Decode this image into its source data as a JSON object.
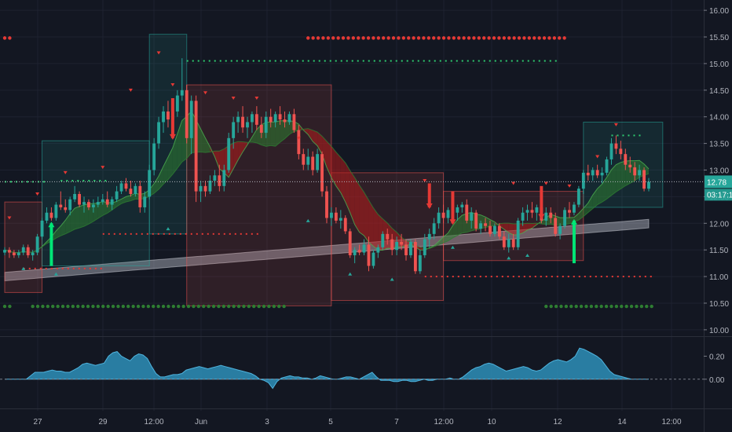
{
  "chart_data": {
    "type": "candlestick",
    "price_panel": {
      "y_ticks": [
        "16.00",
        "15.50",
        "15.00",
        "14.50",
        "14.00",
        "13.50",
        "13.00",
        "12.50",
        "12.00",
        "11.50",
        "11.00",
        "10.50",
        "10.00"
      ],
      "ylim": [
        9.88,
        16.12
      ],
      "last_price": "12.78",
      "countdown": "03:17:10",
      "bull_color": "#26a69a",
      "bear_color": "#ef5350",
      "candles": [
        [
          11.45,
          11.55,
          11.4,
          11.5
        ],
        [
          11.5,
          11.55,
          11.35,
          11.45
        ],
        [
          11.45,
          11.5,
          11.35,
          11.4
        ],
        [
          11.4,
          11.5,
          11.35,
          11.45
        ],
        [
          11.45,
          11.6,
          11.4,
          11.55
        ],
        [
          11.55,
          11.6,
          11.35,
          11.4
        ],
        [
          11.4,
          11.5,
          11.3,
          11.45
        ],
        [
          11.45,
          11.8,
          11.4,
          11.75
        ],
        [
          11.75,
          12.1,
          11.7,
          12.05
        ],
        [
          12.05,
          12.3,
          12.0,
          12.2
        ],
        [
          12.2,
          12.3,
          12.05,
          12.1
        ],
        [
          12.1,
          12.4,
          12.05,
          12.35
        ],
        [
          12.35,
          12.6,
          12.25,
          12.3
        ],
        [
          12.3,
          12.45,
          12.2,
          12.25
        ],
        [
          12.25,
          12.5,
          12.15,
          12.45
        ],
        [
          12.45,
          12.7,
          12.4,
          12.55
        ],
        [
          12.55,
          12.6,
          12.3,
          12.35
        ],
        [
          12.35,
          12.5,
          12.2,
          12.4
        ],
        [
          12.4,
          12.45,
          12.25,
          12.3
        ],
        [
          12.3,
          12.45,
          12.2,
          12.35
        ],
        [
          12.35,
          12.5,
          12.3,
          12.4
        ],
        [
          12.4,
          12.55,
          12.35,
          12.45
        ],
        [
          12.45,
          12.6,
          12.3,
          12.35
        ],
        [
          12.35,
          12.5,
          12.25,
          12.45
        ],
        [
          12.45,
          12.7,
          12.4,
          12.6
        ],
        [
          12.6,
          12.8,
          12.55,
          12.75
        ],
        [
          12.75,
          12.85,
          12.6,
          12.65
        ],
        [
          12.65,
          12.8,
          12.5,
          12.55
        ],
        [
          12.55,
          12.75,
          12.5,
          12.7
        ],
        [
          12.7,
          12.8,
          12.2,
          12.3
        ],
        [
          12.3,
          12.6,
          12.2,
          12.5
        ],
        [
          12.5,
          13.1,
          12.45,
          13.0
        ],
        [
          13.0,
          13.6,
          12.9,
          13.5
        ],
        [
          13.5,
          14.0,
          13.4,
          13.9
        ],
        [
          13.9,
          14.2,
          13.7,
          14.1
        ],
        [
          14.1,
          14.3,
          13.8,
          13.95
        ],
        [
          13.95,
          14.2,
          13.8,
          14.1
        ],
        [
          14.1,
          14.5,
          14.0,
          14.4
        ],
        [
          14.4,
          15.1,
          14.3,
          14.5
        ],
        [
          14.5,
          14.6,
          13.5,
          13.6
        ],
        [
          13.6,
          14.4,
          13.3,
          14.3
        ],
        [
          14.3,
          14.4,
          12.4,
          12.6
        ],
        [
          12.6,
          12.8,
          12.4,
          12.7
        ],
        [
          12.7,
          12.8,
          12.5,
          12.6
        ],
        [
          12.6,
          12.9,
          12.55,
          12.8
        ],
        [
          12.8,
          13.0,
          12.7,
          12.9
        ],
        [
          12.9,
          13.1,
          12.6,
          12.7
        ],
        [
          12.7,
          13.1,
          12.6,
          13.0
        ],
        [
          13.0,
          13.7,
          12.95,
          13.6
        ],
        [
          13.6,
          14.0,
          13.4,
          13.9
        ],
        [
          13.9,
          14.1,
          13.7,
          14.0
        ],
        [
          14.0,
          14.2,
          13.7,
          13.8
        ],
        [
          13.8,
          14.0,
          13.6,
          13.9
        ],
        [
          13.9,
          14.1,
          13.7,
          14.05
        ],
        [
          14.05,
          14.2,
          13.75,
          13.85
        ],
        [
          13.85,
          14.0,
          13.6,
          13.7
        ],
        [
          13.7,
          14.1,
          13.6,
          14.0
        ],
        [
          14.0,
          14.15,
          13.8,
          13.9
        ],
        [
          13.9,
          14.1,
          13.8,
          14.05
        ],
        [
          14.05,
          14.2,
          13.85,
          13.95
        ],
        [
          13.95,
          14.1,
          13.8,
          13.9
        ],
        [
          13.9,
          14.1,
          13.85,
          14.05
        ],
        [
          14.05,
          14.15,
          13.7,
          13.75
        ],
        [
          13.75,
          13.85,
          13.2,
          13.3
        ],
        [
          13.3,
          13.4,
          13.0,
          13.1
        ],
        [
          13.1,
          13.4,
          13.0,
          13.25
        ],
        [
          13.25,
          13.35,
          12.9,
          13.0
        ],
        [
          13.0,
          13.4,
          12.95,
          13.3
        ],
        [
          13.3,
          13.35,
          12.5,
          12.6
        ],
        [
          12.6,
          12.7,
          12.0,
          12.1
        ],
        [
          12.1,
          12.3,
          11.95,
          12.2
        ],
        [
          12.2,
          12.3,
          12.0,
          12.05
        ],
        [
          12.05,
          12.25,
          11.9,
          12.1
        ],
        [
          12.1,
          12.15,
          11.8,
          11.85
        ],
        [
          11.85,
          11.9,
          11.35,
          11.4
        ],
        [
          11.4,
          11.55,
          11.25,
          11.5
        ],
        [
          11.5,
          11.6,
          11.4,
          11.45
        ],
        [
          11.45,
          11.7,
          11.4,
          11.6
        ],
        [
          11.6,
          11.75,
          11.1,
          11.2
        ],
        [
          11.2,
          11.5,
          11.15,
          11.45
        ],
        [
          11.45,
          11.6,
          11.35,
          11.55
        ],
        [
          11.55,
          11.85,
          11.5,
          11.8
        ],
        [
          11.8,
          11.9,
          11.6,
          11.7
        ],
        [
          11.7,
          11.8,
          11.4,
          11.5
        ],
        [
          11.5,
          11.75,
          11.4,
          11.65
        ],
        [
          11.65,
          11.8,
          11.5,
          11.6
        ],
        [
          11.6,
          11.7,
          11.3,
          11.4
        ],
        [
          11.4,
          11.7,
          11.35,
          11.65
        ],
        [
          11.65,
          11.7,
          11.05,
          11.1
        ],
        [
          11.1,
          11.5,
          11.05,
          11.4
        ],
        [
          11.4,
          11.8,
          11.35,
          11.7
        ],
        [
          11.7,
          11.9,
          11.55,
          11.8
        ],
        [
          11.8,
          12.1,
          11.7,
          12.0
        ],
        [
          12.0,
          12.3,
          11.9,
          12.2
        ],
        [
          12.2,
          12.35,
          12.0,
          12.1
        ],
        [
          12.1,
          12.3,
          12.0,
          12.25
        ],
        [
          12.25,
          12.4,
          12.1,
          12.2
        ],
        [
          12.2,
          12.35,
          12.05,
          12.3
        ],
        [
          12.3,
          12.4,
          12.2,
          12.35
        ],
        [
          12.35,
          12.45,
          12.0,
          12.05
        ],
        [
          12.05,
          12.3,
          11.9,
          12.2
        ],
        [
          12.2,
          12.25,
          11.85,
          11.9
        ],
        [
          11.9,
          12.05,
          11.8,
          12.0
        ],
        [
          12.0,
          12.1,
          11.85,
          11.95
        ],
        [
          11.95,
          12.05,
          11.75,
          11.8
        ],
        [
          11.8,
          12.0,
          11.75,
          11.95
        ],
        [
          11.95,
          12.0,
          11.7,
          11.75
        ],
        [
          11.75,
          11.85,
          11.5,
          11.55
        ],
        [
          11.55,
          11.8,
          11.45,
          11.7
        ],
        [
          11.7,
          11.8,
          11.5,
          11.55
        ],
        [
          11.55,
          12.1,
          11.5,
          12.05
        ],
        [
          12.05,
          12.3,
          11.95,
          12.2
        ],
        [
          12.2,
          12.35,
          12.05,
          12.25
        ],
        [
          12.25,
          12.4,
          12.1,
          12.2
        ],
        [
          12.2,
          12.35,
          12.05,
          12.3
        ],
        [
          12.3,
          12.4,
          12.0,
          12.05
        ],
        [
          12.05,
          12.3,
          11.95,
          12.2
        ],
        [
          12.2,
          12.3,
          12.0,
          12.1
        ],
        [
          12.1,
          12.2,
          11.75,
          11.8
        ],
        [
          11.8,
          12.0,
          11.7,
          11.95
        ],
        [
          11.95,
          12.3,
          11.9,
          12.25
        ],
        [
          12.25,
          12.4,
          12.1,
          12.2
        ],
        [
          12.2,
          12.4,
          12.15,
          12.35
        ],
        [
          12.35,
          12.7,
          12.3,
          12.65
        ],
        [
          12.65,
          13.0,
          12.55,
          12.95
        ],
        [
          12.95,
          13.1,
          12.8,
          12.9
        ],
        [
          12.9,
          13.05,
          12.8,
          13.0
        ],
        [
          13.0,
          13.1,
          12.85,
          12.9
        ],
        [
          12.9,
          13.05,
          12.75,
          12.95
        ],
        [
          12.95,
          13.25,
          12.9,
          13.2
        ],
        [
          13.2,
          13.6,
          13.1,
          13.5
        ],
        [
          13.5,
          13.65,
          13.3,
          13.4
        ],
        [
          13.4,
          13.55,
          13.2,
          13.3
        ],
        [
          13.3,
          13.4,
          13.0,
          13.1
        ],
        [
          13.1,
          13.25,
          12.95,
          13.05
        ],
        [
          13.05,
          13.15,
          12.8,
          12.9
        ],
        [
          12.9,
          13.1,
          12.8,
          13.0
        ],
        [
          13.0,
          13.05,
          12.6,
          12.65
        ],
        [
          12.65,
          12.85,
          12.6,
          12.78
        ]
      ]
    },
    "oscillator_panel": {
      "y_ticks": [
        "0.20",
        "0.00"
      ],
      "ylim": [
        -0.24,
        0.36
      ],
      "fill_color": "#2e8fb8",
      "values": [
        0.0,
        0.0,
        0.0,
        0.0,
        0.0,
        0.0,
        0.03,
        0.06,
        0.06,
        0.06,
        0.07,
        0.08,
        0.07,
        0.07,
        0.06,
        0.06,
        0.08,
        0.1,
        0.13,
        0.14,
        0.13,
        0.12,
        0.13,
        0.14,
        0.2,
        0.23,
        0.24,
        0.2,
        0.18,
        0.16,
        0.2,
        0.22,
        0.21,
        0.18,
        0.11,
        0.05,
        0.02,
        0.02,
        0.03,
        0.04,
        0.04,
        0.05,
        0.08,
        0.09,
        0.1,
        0.11,
        0.1,
        0.09,
        0.1,
        0.11,
        0.12,
        0.11,
        0.1,
        0.09,
        0.08,
        0.07,
        0.06,
        0.05,
        0.03,
        0.0,
        -0.01,
        -0.03,
        -0.08,
        -0.02,
        0.01,
        0.02,
        0.03,
        0.02,
        0.02,
        0.01,
        0.01,
        0.0,
        0.01,
        0.03,
        0.02,
        0.01,
        0.0,
        0.0,
        0.01,
        0.02,
        0.02,
        0.01,
        0.0,
        0.02,
        0.04,
        0.06,
        0.02,
        -0.01,
        -0.01,
        -0.01,
        -0.02,
        -0.02,
        -0.01,
        -0.01,
        -0.02,
        -0.02,
        -0.01,
        0.0,
        -0.01,
        -0.01,
        0.0,
        0.0,
        0.0,
        0.01,
        0.0,
        0.0,
        0.02,
        0.05,
        0.08,
        0.1,
        0.11,
        0.13,
        0.14,
        0.13,
        0.11,
        0.09,
        0.07,
        0.08,
        0.09,
        0.1,
        0.11,
        0.1,
        0.08,
        0.07,
        0.08,
        0.11,
        0.14,
        0.16,
        0.17,
        0.16,
        0.15,
        0.17,
        0.2,
        0.27,
        0.26,
        0.24,
        0.22,
        0.2,
        0.17,
        0.12,
        0.07,
        0.04,
        0.03,
        0.02,
        0.01,
        0.0,
        0.0,
        0.0,
        0.0,
        0.0
      ]
    },
    "x_ticks": [
      "27",
      "29",
      "12:00",
      "Jun",
      "3",
      "5",
      "7",
      "12:00",
      "10",
      "12",
      "14",
      "12:00"
    ]
  }
}
